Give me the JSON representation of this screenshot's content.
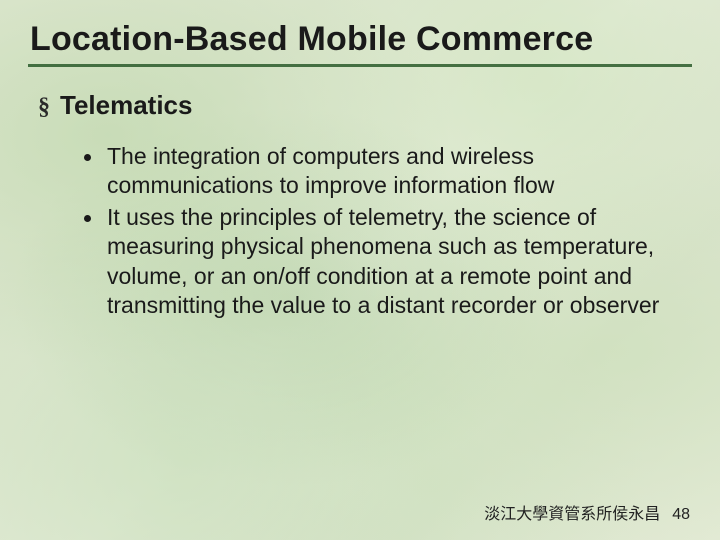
{
  "title": "Location-Based Mobile Commerce",
  "underline_color": "#2a5a2a",
  "section": {
    "marker": "§",
    "heading": "Telematics"
  },
  "bullets": [
    "The integration of computers and wireless communications to improve information flow",
    "It uses the principles of telemetry, the science of measuring physical phenomena such as temperature, volume, or an on/off condition at a remote point and transmitting the value to a distant recorder or observer"
  ],
  "footer": {
    "text": "淡江大學資管系所侯永昌",
    "page": "48"
  },
  "style": {
    "title_fontsize": 34,
    "section_fontsize": 26,
    "body_fontsize": 23,
    "footer_fontsize": 16,
    "text_color": "#1a1a1a",
    "bg_base": "#dfe7d3"
  }
}
